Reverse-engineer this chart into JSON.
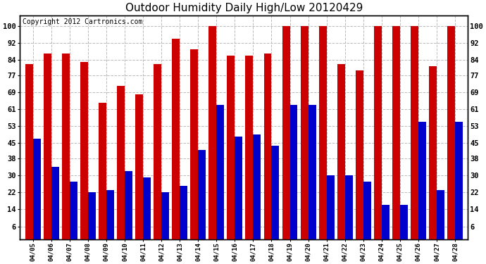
{
  "title": "Outdoor Humidity Daily High/Low 20120429",
  "copyright": "Copyright 2012 Cartronics.com",
  "dates": [
    "04/05",
    "04/06",
    "04/07",
    "04/08",
    "04/09",
    "04/10",
    "04/11",
    "04/12",
    "04/13",
    "04/14",
    "04/15",
    "04/16",
    "04/17",
    "04/18",
    "04/19",
    "04/20",
    "04/21",
    "04/22",
    "04/23",
    "04/24",
    "04/25",
    "04/26",
    "04/27",
    "04/28"
  ],
  "high_values": [
    82,
    87,
    87,
    83,
    64,
    72,
    68,
    82,
    94,
    89,
    100,
    86,
    86,
    87,
    100,
    100,
    100,
    82,
    79,
    100,
    100,
    100,
    81,
    100
  ],
  "low_values": [
    47,
    34,
    27,
    22,
    23,
    32,
    29,
    22,
    25,
    42,
    63,
    48,
    49,
    44,
    63,
    63,
    30,
    30,
    27,
    16,
    16,
    55,
    23,
    55
  ],
  "high_color": "#cc0000",
  "low_color": "#0000cc",
  "bg_color": "#ffffff",
  "plot_bg_color": "#ffffff",
  "grid_color": "#bbbbbb",
  "yticks": [
    6,
    14,
    22,
    30,
    38,
    45,
    53,
    61,
    69,
    77,
    84,
    92,
    100
  ],
  "ylim": [
    0,
    105
  ],
  "title_fontsize": 11,
  "copyright_fontsize": 7,
  "bar_width": 0.42
}
